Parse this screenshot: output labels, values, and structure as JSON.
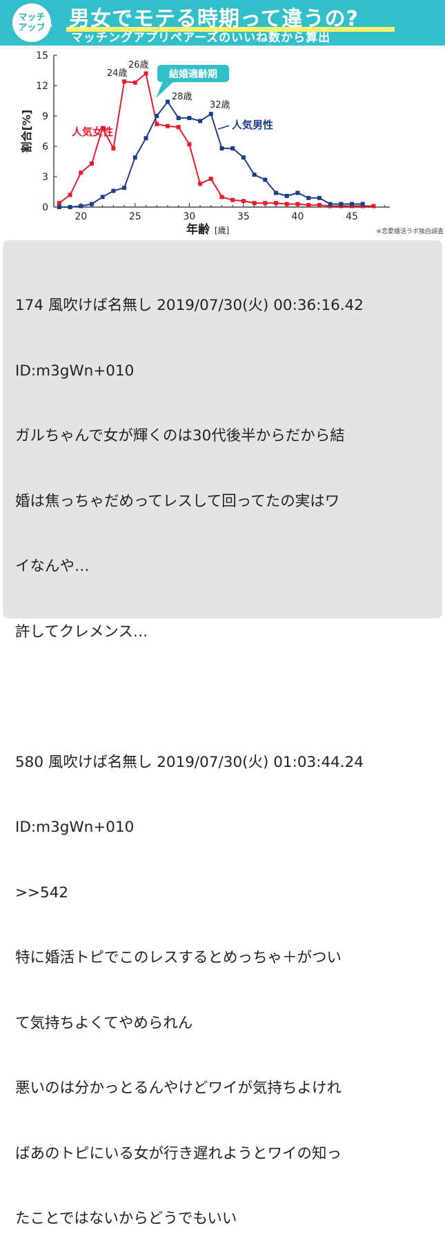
{
  "banner": {
    "badge_line1": "マッチ",
    "badge_line2": "アップ",
    "title": "男女でモテる時期って違うの?",
    "subtitle": "マッチングアプリペアーズのいいね数から算出"
  },
  "chart_data": {
    "type": "line",
    "ylabel": "割合[%]",
    "xlabel": "年齢",
    "xlabel_unit": "[歳]",
    "source_note": "※恋愛婚活ラボ独自調査",
    "xlim": [
      17.5,
      48.5
    ],
    "ylim": [
      0,
      15
    ],
    "xticks": [
      20,
      25,
      30,
      35,
      40,
      45
    ],
    "yticks": [
      0,
      3,
      6,
      9,
      12,
      15
    ],
    "colors": {
      "female": "#e8192c",
      "male": "#1e3c8c",
      "callout": "#33bfc9"
    },
    "series": [
      {
        "name": "人気女性",
        "color": "#e8192c",
        "x": [
          18,
          19,
          20,
          21,
          22,
          23,
          24,
          25,
          26,
          27,
          28,
          29,
          30,
          31,
          32,
          33,
          34,
          35,
          36,
          37,
          38,
          39,
          40,
          41,
          42,
          43,
          44,
          45,
          46,
          47
        ],
        "y": [
          0.4,
          1.2,
          3.4,
          4.3,
          7.8,
          5.8,
          12.4,
          12.3,
          13.2,
          8.2,
          8.0,
          7.9,
          6.2,
          2.3,
          2.8,
          1.0,
          0.7,
          0.6,
          0.4,
          0.4,
          0.4,
          0.3,
          0.3,
          0.2,
          0.2,
          0.1,
          0.1,
          0.1,
          0.1,
          0.1
        ]
      },
      {
        "name": "人気男性",
        "color": "#1e3c8c",
        "x": [
          18,
          19,
          20,
          21,
          22,
          23,
          24,
          25,
          26,
          27,
          28,
          29,
          30,
          31,
          32,
          33,
          34,
          35,
          36,
          37,
          38,
          39,
          40,
          41,
          42,
          43,
          44,
          45,
          46
        ],
        "y": [
          0.0,
          0.0,
          0.1,
          0.3,
          1.0,
          1.6,
          1.9,
          4.9,
          6.8,
          9.0,
          10.4,
          8.8,
          8.8,
          8.5,
          9.2,
          5.8,
          5.8,
          4.9,
          3.2,
          2.7,
          1.4,
          1.1,
          1.4,
          0.9,
          0.9,
          0.3,
          0.3,
          0.3,
          0.3
        ]
      }
    ],
    "annotations": [
      {
        "text": "24歳",
        "x": 24
      },
      {
        "text": "26歳",
        "x": 26
      },
      {
        "text": "28歳",
        "x": 28
      },
      {
        "text": "32歳",
        "x": 32
      },
      {
        "text": "結婚適齢期"
      }
    ]
  },
  "posts": [
    {
      "header": "174 風吹けば名無し 2019/07/30(火) 00:36:16.42",
      "id": "ID:m3gWn+010",
      "lines": [
        "ガルちゃんで女が輝くのは30代後半からだから結",
        "婚は焦っちゃだめってレスして回ってたの実はワ",
        "イなんや…",
        "許してクレメンス…"
      ]
    },
    {
      "header": "580 風吹けば名無し 2019/07/30(火) 01:03:44.24",
      "id": "ID:m3gWn+010",
      "lines": [
        ">>542",
        "特に婚活トピでこのレスするとめっちゃ＋がつい",
        "て気持ちよくてやめられん",
        "悪いのは分かっとるんやけどワイが気持ちよけれ",
        "ばあのトピにいる女が行き遅れようとワイの知っ",
        "たことではないからどうでもいい"
      ]
    }
  ]
}
